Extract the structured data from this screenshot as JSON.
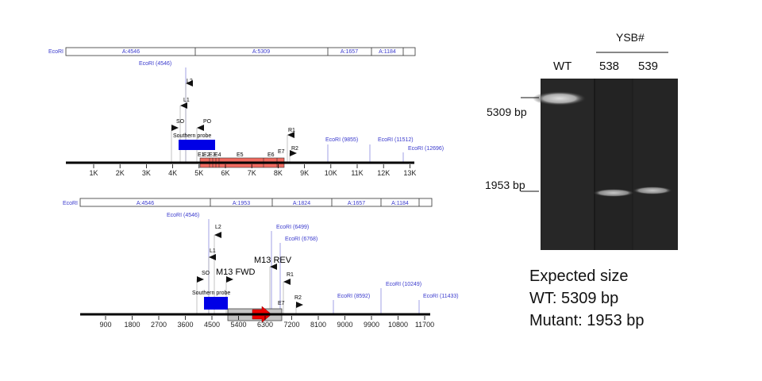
{
  "map1": {
    "frag_enzyme": "EcoRI",
    "fragments": [
      "A:4546",
      "A:5309",
      "A:1657",
      "A:1184"
    ],
    "sites": [
      "EcoRI (4546)",
      "EcoRI (9855)",
      "EcoRI (11512)",
      "EcoRI (12696)"
    ],
    "primers": [
      "L2",
      "L1",
      "SO",
      "PO",
      "R1",
      "R2"
    ],
    "probe": "Southern probe",
    "exons": [
      "E1",
      "E2",
      "E3",
      "E4",
      "E5",
      "E6",
      "E7"
    ],
    "ticks": [
      "1K",
      "2K",
      "3K",
      "4K",
      "5K",
      "6K",
      "7K",
      "8K",
      "9K",
      "10K",
      "11K",
      "12K",
      "13K"
    ]
  },
  "map2": {
    "frag_enzyme": "EcoRI",
    "fragments": [
      "A:4546",
      "A:1953",
      "A:1824",
      "A:1657",
      "A:1184"
    ],
    "sites": [
      "EcoRI (4546)",
      "EcoRI (6499)",
      "EcoRI (6768)",
      "EcoRI (8592)",
      "EcoRI (10249)",
      "EcoRI (11433)"
    ],
    "primers": [
      "L2",
      "L1",
      "SO",
      "R1",
      "R2"
    ],
    "m13_fwd": "M13 FWD",
    "m13_rev": "M13 REV",
    "probe": "Southern probe",
    "exon": "E7",
    "ticks": [
      "900",
      "1800",
      "2700",
      "3600",
      "4500",
      "5400",
      "6300",
      "7200",
      "8100",
      "9000",
      "9900",
      "10800",
      "11700"
    ]
  },
  "gel": {
    "group_label": "YSB#",
    "lanes": [
      "WT",
      "538",
      "539"
    ],
    "markers": [
      "5309 bp",
      "1953 bp"
    ]
  },
  "caption": {
    "line1": "Expected size",
    "line2": "WT: 5309 bp",
    "line3": "Mutant: 1953 bp"
  },
  "colors": {
    "site_blue": "#3a3acd",
    "probe_blue": "#0000e6",
    "exon_red": "#f06a60",
    "arrow_red": "#ee0000",
    "cassette_gray": "#c4c4c4",
    "gel_bg": "#262626"
  }
}
